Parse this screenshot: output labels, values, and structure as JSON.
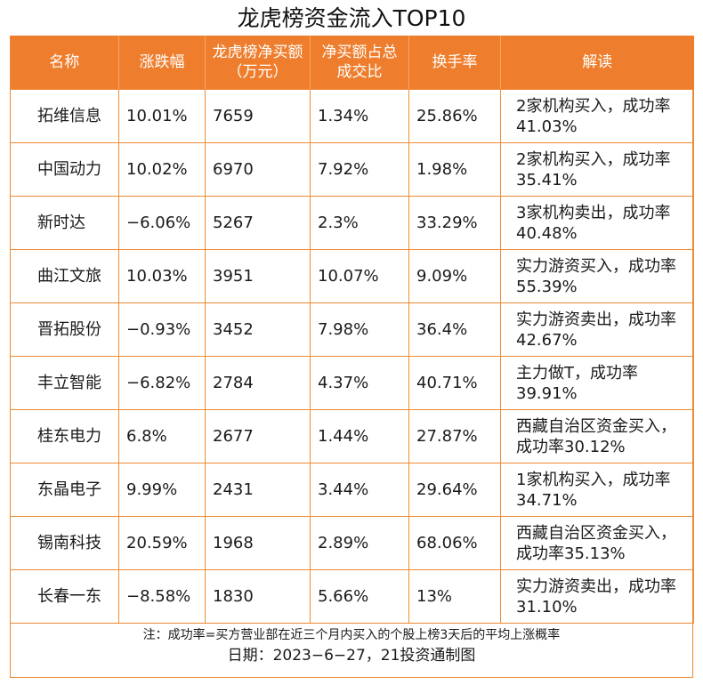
{
  "title": "龙虎榜资金流入TOP10",
  "headers": [
    "名称",
    "涨跌幅",
    "龙虎榜净买额（万元）",
    "净买额占总成交比",
    "换手率",
    "解读"
  ],
  "rows": [
    {
      "name": "拓维信息",
      "change": "10.01%",
      "net_buy": "7659",
      "ratio": "1.34%",
      "turnover": "25.86%",
      "note": "2家机构买入，成功率41.03%"
    },
    {
      "name": "中国动力",
      "change": "10.02%",
      "net_buy": "6970",
      "ratio": "7.92%",
      "turnover": "1.98%",
      "note": "2家机构买入，成功率35.41%"
    },
    {
      "name": "新时达",
      "change": "−6.06%",
      "net_buy": "5267",
      "ratio": "2.3%",
      "turnover": "33.29%",
      "note": "3家机构卖出，成功率40.48%"
    },
    {
      "name": "曲江文旅",
      "change": "10.03%",
      "net_buy": "3951",
      "ratio": "10.07%",
      "turnover": "9.09%",
      "note": "实力游资买入，成功率55.39%"
    },
    {
      "name": "晋拓股份",
      "change": "−0.93%",
      "net_buy": "3452",
      "ratio": "7.98%",
      "turnover": "36.4%",
      "note": "实力游资卖出，成功率42.67%"
    },
    {
      "name": "丰立智能",
      "change": "−6.82%",
      "net_buy": "2784",
      "ratio": "4.37%",
      "turnover": "40.71%",
      "note": "主力做T，成功率39.91%"
    },
    {
      "name": "桂东电力",
      "change": "6.8%",
      "net_buy": "2677",
      "ratio": "1.44%",
      "turnover": "27.87%",
      "note": "西藏自治区资金买入，成功率30.12%"
    },
    {
      "name": "东晶电子",
      "change": "9.99%",
      "net_buy": "2431",
      "ratio": "3.44%",
      "turnover": "29.64%",
      "note": "1家机构买入，成功率34.71%"
    },
    {
      "name": "锡南科技",
      "change": "20.59%",
      "net_buy": "1968",
      "ratio": "2.89%",
      "turnover": "68.06%",
      "note": "西藏自治区资金买入，成功率35.13%"
    },
    {
      "name": "长春一东",
      "change": "−8.58%",
      "net_buy": "1830",
      "ratio": "5.66%",
      "turnover": "13%",
      "note": "实力游资卖出，成功率31.10%"
    }
  ],
  "footnote": "注：成功率=买方营业部在近三个月内买入的个股上榜3天后的平均上涨概率",
  "date_line": "日期：2023−6−27，21投资通制图",
  "colors": {
    "header_bg": "#ee7e2d",
    "border": "#f08a33"
  }
}
